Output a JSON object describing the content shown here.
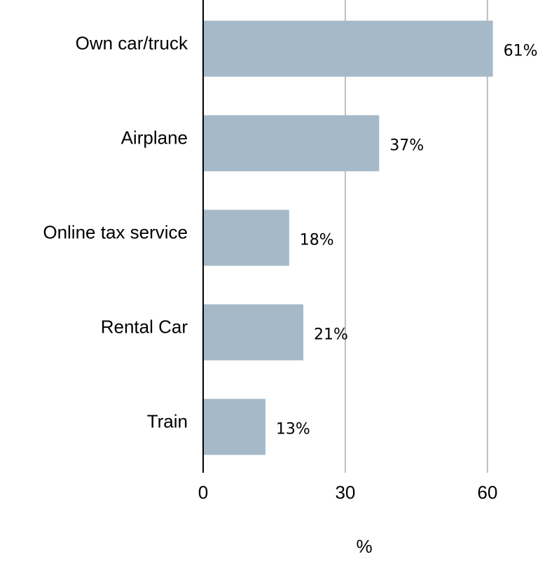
{
  "chart_data": {
    "type": "hbar",
    "categories": [
      "Own car/truck",
      "Airplane",
      "Online tax service",
      "Rental Car",
      "Train"
    ],
    "values": [
      61,
      37,
      18,
      21,
      13
    ],
    "value_labels": [
      "61%",
      "37%",
      "18%",
      "21%",
      "13%"
    ],
    "color": "#a6b9c8",
    "xlabel": "%",
    "xlim": [
      0,
      72
    ],
    "xticks": [
      0,
      30,
      60
    ],
    "grid": true
  }
}
